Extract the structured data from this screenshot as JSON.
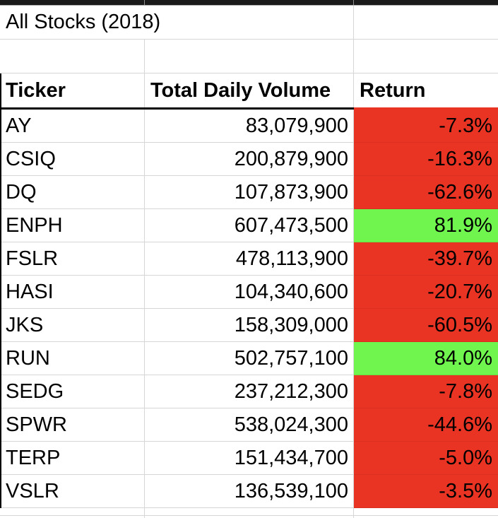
{
  "sheet": {
    "title": "All Stocks (2018)"
  },
  "table": {
    "columns": [
      "Ticker",
      "Total Daily Volume",
      "Return"
    ],
    "rows": [
      {
        "ticker": "AY",
        "volume": "83,079,900",
        "return": "-7.3%",
        "sentiment": "negative"
      },
      {
        "ticker": "CSIQ",
        "volume": "200,879,900",
        "return": "-16.3%",
        "sentiment": "negative"
      },
      {
        "ticker": "DQ",
        "volume": "107,873,900",
        "return": "-62.6%",
        "sentiment": "negative"
      },
      {
        "ticker": "ENPH",
        "volume": "607,473,500",
        "return": "81.9%",
        "sentiment": "positive"
      },
      {
        "ticker": "FSLR",
        "volume": "478,113,900",
        "return": "-39.7%",
        "sentiment": "negative"
      },
      {
        "ticker": "HASI",
        "volume": "104,340,600",
        "return": "-20.7%",
        "sentiment": "negative"
      },
      {
        "ticker": "JKS",
        "volume": "158,309,000",
        "return": "-60.5%",
        "sentiment": "negative"
      },
      {
        "ticker": "RUN",
        "volume": "502,757,100",
        "return": "84.0%",
        "sentiment": "positive"
      },
      {
        "ticker": "SEDG",
        "volume": "237,212,300",
        "return": "-7.8%",
        "sentiment": "negative"
      },
      {
        "ticker": "SPWR",
        "volume": "538,024,300",
        "return": "-44.6%",
        "sentiment": "negative"
      },
      {
        "ticker": "TERP",
        "volume": "151,434,700",
        "return": "-5.0%",
        "sentiment": "negative"
      },
      {
        "ticker": "VSLR",
        "volume": "136,539,100",
        "return": "-3.5%",
        "sentiment": "negative"
      }
    ]
  },
  "colors": {
    "negative_fill": "#e93323",
    "positive_fill": "#70f54e",
    "gridline": "#d6d6d6",
    "top_bar_fill": "#1a1a1a",
    "table_border": "#000000"
  }
}
